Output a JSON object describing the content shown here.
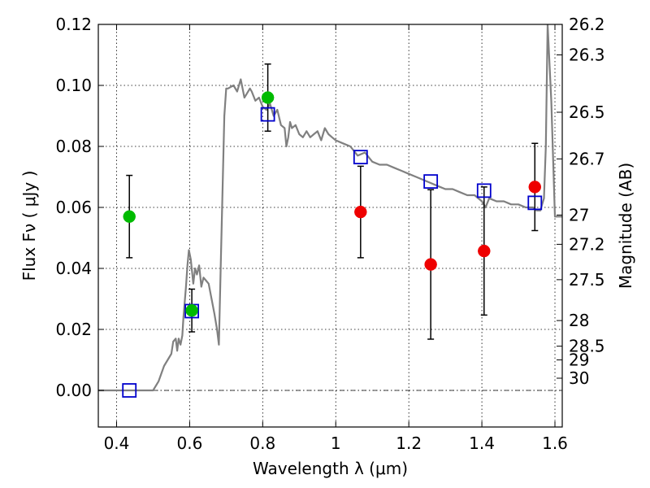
{
  "chart_data": {
    "type": "scatter",
    "xlabel": "Wavelength  λ (μm)",
    "ylabel": "Flux  Fν  ( μJy )",
    "ylabel_right": "Magnitude (AB)",
    "xlim": [
      0.35,
      1.62
    ],
    "ylim": [
      -0.012,
      0.12
    ],
    "grid": true,
    "x_ticks": [
      0.4,
      0.6,
      0.8,
      1.0,
      1.2,
      1.4,
      1.6
    ],
    "x_tick_labels": [
      "0.4",
      "0.6",
      "0.8",
      "1",
      "1.2",
      "1.4",
      "1.6"
    ],
    "y_ticks": [
      0.0,
      0.02,
      0.04,
      0.06,
      0.08,
      0.1,
      0.12
    ],
    "y_tick_labels": [
      "0.00",
      "0.02",
      "0.04",
      "0.06",
      "0.08",
      "0.10",
      "0.12"
    ],
    "mag_ticks": [
      {
        "label": "26.2",
        "flux": 0.12
      },
      {
        "label": "26.3",
        "flux": 0.11
      },
      {
        "label": "26.5",
        "flux": 0.0912
      },
      {
        "label": "26.7",
        "flux": 0.0759
      },
      {
        "label": "27",
        "flux": 0.0575
      },
      {
        "label": "27.2",
        "flux": 0.0479
      },
      {
        "label": "27.5",
        "flux": 0.0363
      },
      {
        "label": "28",
        "flux": 0.0229
      },
      {
        "label": "28.5",
        "flux": 0.0145
      },
      {
        "label": "29",
        "flux": 0.01
      },
      {
        "label": "30",
        "flux": 0.004
      }
    ],
    "series": [
      {
        "kind": "errorbar",
        "marker": "circle",
        "color": "#00bb00",
        "points": [
          {
            "x": 0.435,
            "y": 0.057,
            "yerr": 0.0135
          },
          {
            "x": 0.606,
            "y": 0.0262,
            "yerr": 0.007
          },
          {
            "x": 0.814,
            "y": 0.096,
            "yerr": 0.011
          }
        ]
      },
      {
        "kind": "errorbar",
        "marker": "circle",
        "color": "#ee0000",
        "points": [
          {
            "x": 1.068,
            "y": 0.0585,
            "yerr": 0.015
          },
          {
            "x": 1.26,
            "y": 0.0413,
            "yerr": 0.0245
          },
          {
            "x": 1.406,
            "y": 0.0457,
            "yerr": 0.021
          },
          {
            "x": 1.545,
            "y": 0.0667,
            "yerr": 0.0143
          }
        ]
      },
      {
        "kind": "scatter",
        "marker": "square-open",
        "color": "#0000cc",
        "points": [
          {
            "x": 0.435,
            "y": 0.0
          },
          {
            "x": 0.606,
            "y": 0.026
          },
          {
            "x": 0.814,
            "y": 0.0905
          },
          {
            "x": 1.068,
            "y": 0.0765
          },
          {
            "x": 1.26,
            "y": 0.0685
          },
          {
            "x": 1.406,
            "y": 0.0655
          },
          {
            "x": 1.545,
            "y": 0.0615
          }
        ]
      },
      {
        "kind": "line",
        "color": "#808080",
        "x": [
          0.35,
          0.5,
          0.515,
          0.53,
          0.55,
          0.555,
          0.562,
          0.566,
          0.57,
          0.575,
          0.58,
          0.583,
          0.59,
          0.594,
          0.598,
          0.603,
          0.61,
          0.615,
          0.62,
          0.626,
          0.632,
          0.638,
          0.645,
          0.652,
          0.66,
          0.668,
          0.675,
          0.68,
          0.685,
          0.695,
          0.7,
          0.705,
          0.72,
          0.73,
          0.74,
          0.75,
          0.755,
          0.765,
          0.77,
          0.78,
          0.79,
          0.8,
          0.81,
          0.82,
          0.83,
          0.84,
          0.85,
          0.86,
          0.865,
          0.87,
          0.875,
          0.88,
          0.89,
          0.9,
          0.91,
          0.92,
          0.93,
          0.94,
          0.95,
          0.96,
          0.97,
          0.98,
          0.99,
          1.0,
          1.02,
          1.04,
          1.06,
          1.08,
          1.1,
          1.12,
          1.14,
          1.16,
          1.18,
          1.2,
          1.22,
          1.24,
          1.26,
          1.28,
          1.3,
          1.32,
          1.34,
          1.36,
          1.38,
          1.4,
          1.41,
          1.42,
          1.44,
          1.46,
          1.48,
          1.5,
          1.52,
          1.54,
          1.55,
          1.56,
          1.57,
          1.575,
          1.58,
          1.59,
          1.6,
          1.62
        ],
        "y": [
          0.0,
          0.0,
          0.003,
          0.008,
          0.012,
          0.016,
          0.017,
          0.013,
          0.017,
          0.015,
          0.018,
          0.024,
          0.034,
          0.041,
          0.046,
          0.043,
          0.035,
          0.04,
          0.038,
          0.041,
          0.034,
          0.037,
          0.036,
          0.035,
          0.03,
          0.025,
          0.02,
          0.015,
          0.04,
          0.09,
          0.099,
          0.099,
          0.1,
          0.098,
          0.102,
          0.096,
          0.097,
          0.099,
          0.098,
          0.095,
          0.096,
          0.093,
          0.092,
          0.094,
          0.09,
          0.092,
          0.087,
          0.086,
          0.08,
          0.083,
          0.088,
          0.086,
          0.087,
          0.084,
          0.083,
          0.085,
          0.083,
          0.084,
          0.085,
          0.082,
          0.086,
          0.084,
          0.083,
          0.082,
          0.081,
          0.08,
          0.077,
          0.078,
          0.075,
          0.074,
          0.074,
          0.073,
          0.072,
          0.071,
          0.07,
          0.069,
          0.068,
          0.067,
          0.066,
          0.066,
          0.065,
          0.064,
          0.064,
          0.062,
          0.06,
          0.063,
          0.062,
          0.062,
          0.061,
          0.061,
          0.06,
          0.06,
          0.059,
          0.059,
          0.063,
          0.08,
          0.12,
          0.095,
          0.057,
          0.057
        ]
      }
    ]
  }
}
